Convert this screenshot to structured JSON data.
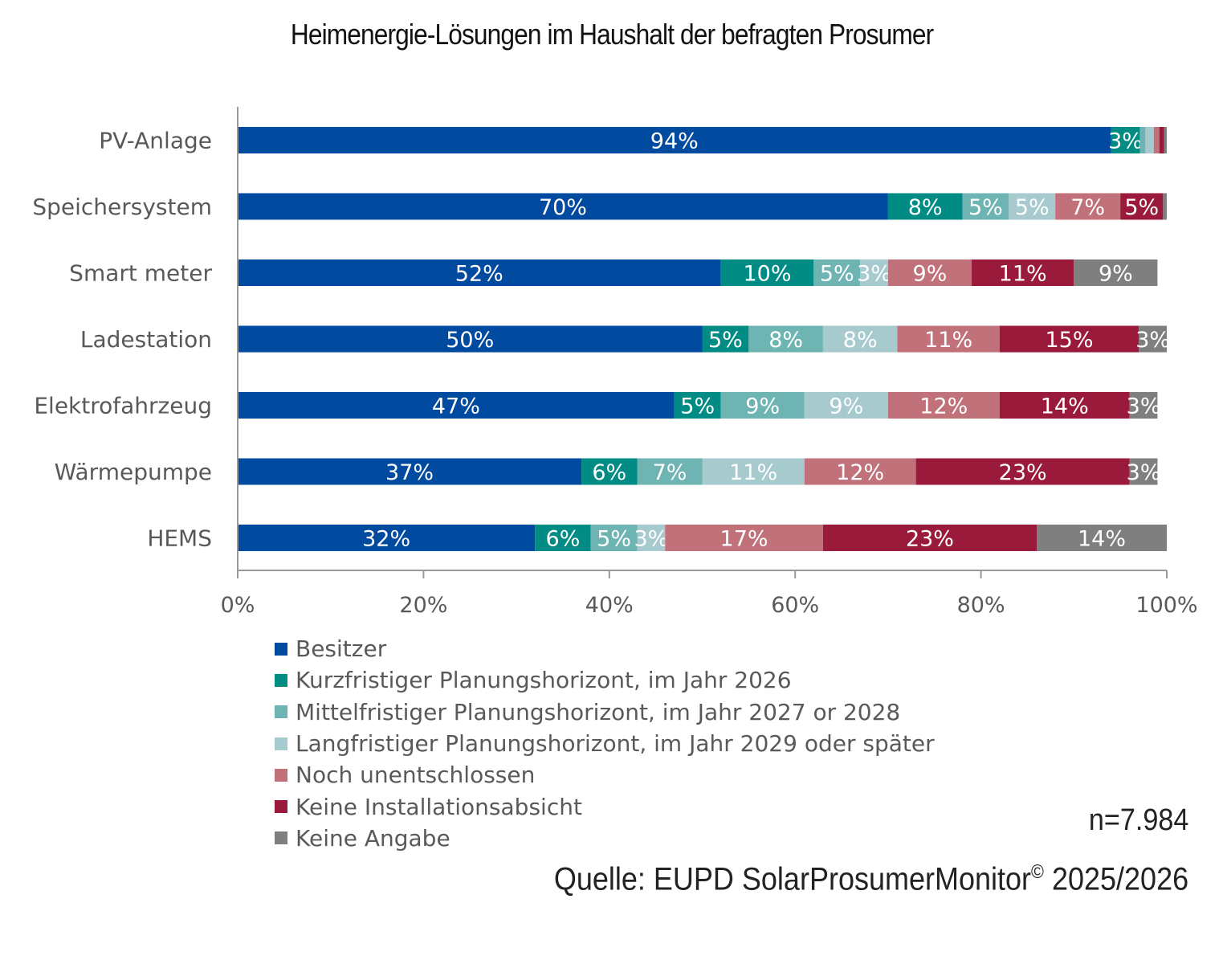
{
  "chart_data": {
    "type": "bar",
    "orientation": "horizontal",
    "stacked": "percent",
    "title": "Heimenergie-Lösungen im Haushalt der befragten Prosumer",
    "xlabel": "",
    "ylabel": "",
    "xlim": [
      0,
      100
    ],
    "x_ticks": [
      "0%",
      "20%",
      "40%",
      "60%",
      "80%",
      "100%"
    ],
    "grid": false,
    "legend_position": "bottom-left",
    "categories": [
      "PV-Anlage",
      "Speichersystem",
      "Smart meter",
      "Ladestation",
      "Elektrofahrzeug",
      "Wärmepumpe",
      "HEMS"
    ],
    "series": [
      {
        "name": "Besitzer",
        "color": "#004A9F",
        "values": [
          94,
          70,
          52,
          50,
          47,
          37,
          32
        ],
        "labels": [
          "94%",
          "70%",
          "52%",
          "50%",
          "47%",
          "37%",
          "32%"
        ]
      },
      {
        "name": "Kurzfristiger Planungshorizont, im Jahr 2026",
        "color": "#008B85",
        "values": [
          3.1,
          8,
          10,
          5,
          5,
          6,
          6
        ],
        "labels": [
          "3%",
          "8%",
          "10%",
          "5%",
          "5%",
          "6%",
          "6%"
        ]
      },
      {
        "name": "Mittelfristiger Planungshorizont, im Jahr 2027 or 2028",
        "color": "#6EB4B2",
        "values": [
          0.6,
          5,
          5,
          8,
          9,
          7,
          5
        ],
        "labels": [
          "",
          "5%",
          "5%",
          "8%",
          "9%",
          "7%",
          "5%"
        ]
      },
      {
        "name": "Langfristiger Planungshorizont, im Jahr 2029 oder später",
        "color": "#A6CACE",
        "values": [
          0.9,
          5,
          3,
          8,
          9,
          11,
          3
        ],
        "labels": [
          "",
          "5%",
          "3%",
          "8%",
          "9%",
          "11%",
          "3%"
        ]
      },
      {
        "name": "Noch unentschlossen",
        "color": "#C0717A",
        "values": [
          0.6,
          7,
          9,
          11,
          12,
          12,
          17
        ],
        "labels": [
          "",
          "7%",
          "9%",
          "11%",
          "12%",
          "12%",
          "17%"
        ]
      },
      {
        "name": "Keine Installationsabsicht",
        "color": "#9A1A3C",
        "values": [
          0.5,
          4.6,
          11,
          15,
          14,
          23,
          23
        ],
        "labels": [
          "",
          "5%",
          "11%",
          "15%",
          "14%",
          "23%",
          "23%"
        ]
      },
      {
        "name": "Keine Angabe",
        "color": "#7F7F7F",
        "values": [
          0.3,
          0.4,
          9,
          3,
          3,
          3,
          14
        ],
        "labels": [
          "",
          "",
          "9%",
          "3%",
          "3%",
          "3%",
          "14%"
        ]
      }
    ]
  },
  "footer": {
    "sample_size": "n=7.984",
    "source_prefix": "Quelle: EUPD SolarProsumerMonitor",
    "source_mark": "©",
    "source_suffix": " 2025/2026"
  }
}
